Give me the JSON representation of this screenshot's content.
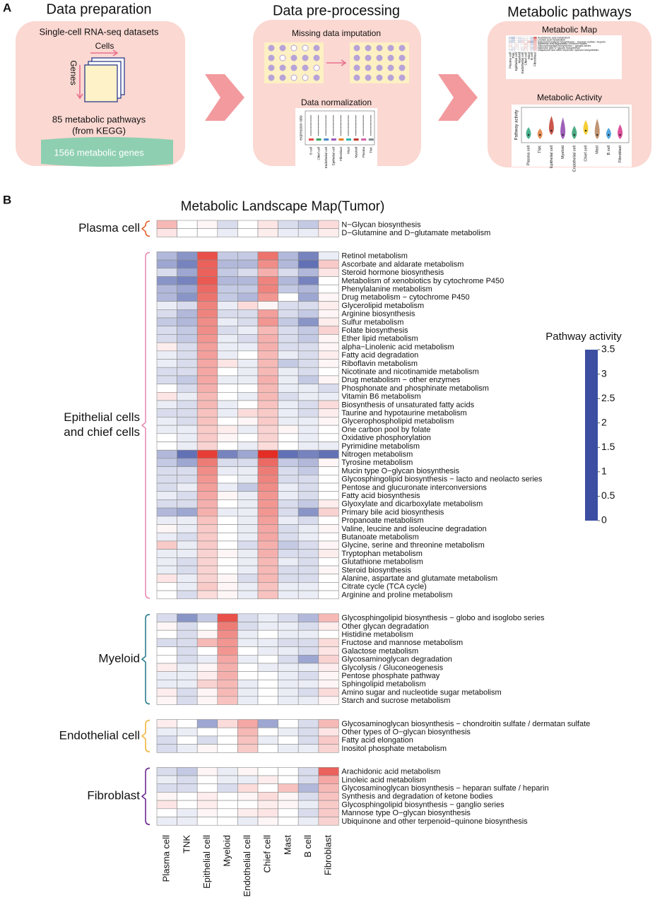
{
  "panel_a": {
    "label": "A",
    "steps": [
      {
        "title": "Data preparation",
        "items": [
          "Single-cell RNA-seq datasets",
          "Cells",
          "Genes",
          "85 metabolic pathways",
          "(from KEGG)",
          "1566 metabolic genes"
        ]
      },
      {
        "title": "Data pre-processing",
        "items": [
          "Missing data imputation",
          "Data normalization"
        ],
        "plot_axis": "expression ratio",
        "plot_labels": [
          "B cell",
          "Chief cell",
          "Endothelial cell",
          "Epithelial cell",
          "Fibroblast",
          "Mast",
          "Myeloid",
          "Plasma",
          "TNK"
        ]
      },
      {
        "title": "Metabolic pathways",
        "items": [
          "Metabolic Map",
          "Metabolic Activity"
        ],
        "plot_axis": "Pathway activity"
      }
    ]
  },
  "panel_b_label": "B",
  "chart_data": {
    "type": "heatmap",
    "title": "Metabolic Landscape Map(Tumor)",
    "categories": [
      "Plasma cell",
      "TNK",
      "Epithelial cell",
      "Myeloid",
      "Endothelial cell",
      "Chief  cell",
      "Mast",
      "B cell",
      "Fibroblast"
    ],
    "colorbar_title": "Pathway activity",
    "zlim": [
      0,
      3.5
    ],
    "zticks": [
      0,
      0.5,
      1,
      1.5,
      2,
      2.5,
      3,
      3.5
    ],
    "colorscale": [
      {
        "value": 0,
        "color": "#3b4ea2"
      },
      {
        "value": 1,
        "color": "#ffffff"
      },
      {
        "value": 3.5,
        "color": "#e3241b"
      }
    ],
    "groups": [
      {
        "label_lines": [
          "Plasma cell"
        ],
        "color": "#e2622f",
        "rows": [
          "N−Glycan biosynthesis",
          "D−Glutamine and D−glutamate metabolism"
        ],
        "values": [
          [
            1.8,
            1.0,
            1.1,
            0.8,
            1.0,
            1.3,
            0.8,
            0.7,
            1.4
          ],
          [
            1.3,
            1.0,
            1.0,
            0.9,
            1.0,
            1.2,
            0.9,
            0.9,
            1.2
          ]
        ]
      },
      {
        "label_lines": [
          "Epithelial cells",
          "and chief cells"
        ],
        "color": "#e98db3",
        "rows": [
          "Retinol metabolism",
          "Ascorbate and aldarate metabolism",
          "Steroid hormone biosynthesis",
          "Metabolism of xenobiotics by cytochrome P450",
          "Phenylalanine metabolism",
          "Drug metabolism − cytochrome P450",
          "Glycerolipid metabolism",
          "Arginine biosynthesis",
          "Sulfur metabolism",
          "Folate biosynthesis",
          "Ether lipid metabolism",
          "alpha−Linolenic acid metabolism",
          "Fatty acid degradation",
          "Riboflavin metabolism",
          "Nicotinate and nicotinamide metabolism",
          "Drug metabolism − other enzymes",
          "Phosphonate and phosphinate metabolism",
          "Vitamin B6 metabolism",
          "Biosynthesis of unsaturated fatty acids",
          "Taurine and hypotaurine metabolism",
          "Glycerophospholipid metabolism",
          "One carbon pool by folate",
          "Oxidative phosphorylation",
          "Pyrimidine metabolism",
          "Nitrogen metabolism",
          "Tyrosine metabolism",
          "Mucin type O−glycan biosynthesis",
          "Glycosphingolipid biosynthesis − lacto and neolacto series",
          "Pentose and glucuronate interconversions",
          "Fatty acid biosynthesis",
          "Glyoxylate and dicarboxylate metabolism",
          "Primary bile acid biosynthesis",
          "Propanoate metabolism",
          "Valine, leucine and isoleucine degradation",
          "Butanoate metabolism",
          "Glycine, serine and threonine metabolism",
          "Tryptophan metabolism",
          "Glutathione metabolism",
          "Steroid biosynthesis",
          "Alanine, aspartate and glutamate metabolism",
          "Citrate cycle (TCA cycle)",
          "Arginine and proline metabolism"
        ],
        "values": [
          [
            0.6,
            0.4,
            3.0,
            0.7,
            0.7,
            2.6,
            0.6,
            0.3,
            0.9
          ],
          [
            0.5,
            0.3,
            2.8,
            0.6,
            0.6,
            2.3,
            0.6,
            0.2,
            1.6
          ],
          [
            0.8,
            0.5,
            2.8,
            0.7,
            0.8,
            1.9,
            0.8,
            0.6,
            1.3
          ],
          [
            0.4,
            0.3,
            2.9,
            0.6,
            0.6,
            2.4,
            0.6,
            0.3,
            1.0
          ],
          [
            0.6,
            0.5,
            2.7,
            0.7,
            0.7,
            2.4,
            0.7,
            0.6,
            1.0
          ],
          [
            0.6,
            0.4,
            2.6,
            0.7,
            0.6,
            2.2,
            1.0,
            0.5,
            1.1
          ],
          [
            0.9,
            0.8,
            2.4,
            0.9,
            1.4,
            1.1,
            0.8,
            0.8,
            1.2
          ],
          [
            0.8,
            0.6,
            2.4,
            0.8,
            0.8,
            2.1,
            0.8,
            0.7,
            1.1
          ],
          [
            0.7,
            0.6,
            2.3,
            0.9,
            0.8,
            2.2,
            0.7,
            0.4,
            1.2
          ],
          [
            0.8,
            0.7,
            2.3,
            0.8,
            0.9,
            1.8,
            0.8,
            0.7,
            1.5
          ],
          [
            0.8,
            0.7,
            2.2,
            0.9,
            0.8,
            1.9,
            0.8,
            0.7,
            1.1
          ],
          [
            1.2,
            0.8,
            2.1,
            0.9,
            0.9,
            1.9,
            0.8,
            0.8,
            1.1
          ],
          [
            0.9,
            0.8,
            2.1,
            0.9,
            1.0,
            1.8,
            0.9,
            0.8,
            1.2
          ],
          [
            0.9,
            0.8,
            2.0,
            1.3,
            0.9,
            1.8,
            0.7,
            0.8,
            1.1
          ],
          [
            0.8,
            0.8,
            2.0,
            1.0,
            0.9,
            1.8,
            0.9,
            0.8,
            1.0
          ],
          [
            0.8,
            0.7,
            2.0,
            0.9,
            0.9,
            1.9,
            0.9,
            0.7,
            1.1
          ],
          [
            1.0,
            0.8,
            1.9,
            1.0,
            1.0,
            1.8,
            0.9,
            0.9,
            0.8
          ],
          [
            1.3,
            0.9,
            1.8,
            1.0,
            0.9,
            1.8,
            0.8,
            0.9,
            0.9
          ],
          [
            0.9,
            0.8,
            1.8,
            0.9,
            1.0,
            1.7,
            0.9,
            0.8,
            1.4
          ],
          [
            0.8,
            0.8,
            1.7,
            0.9,
            1.4,
            1.6,
            0.9,
            0.8,
            1.2
          ],
          [
            0.9,
            0.8,
            1.7,
            1.0,
            1.1,
            1.6,
            0.9,
            0.9,
            1.1
          ],
          [
            0.9,
            0.9,
            1.6,
            1.2,
            0.9,
            1.5,
            1.1,
            0.9,
            1.0
          ],
          [
            1.0,
            0.9,
            1.6,
            1.1,
            1.0,
            1.5,
            1.0,
            0.9,
            1.0
          ],
          [
            1.0,
            0.9,
            1.5,
            1.0,
            0.9,
            1.4,
            1.0,
            0.9,
            0.9
          ],
          [
            0.6,
            0.2,
            3.2,
            0.3,
            0.5,
            3.4,
            0.2,
            0.3,
            0.2
          ],
          [
            0.7,
            0.5,
            2.5,
            0.8,
            0.8,
            2.7,
            0.7,
            0.6,
            1.1
          ],
          [
            0.8,
            0.8,
            2.3,
            0.9,
            0.9,
            2.5,
            0.8,
            0.7,
            1.0
          ],
          [
            0.8,
            0.8,
            2.2,
            1.0,
            0.9,
            2.4,
            0.8,
            0.8,
            1.0
          ],
          [
            0.8,
            0.9,
            2.1,
            0.9,
            0.7,
            2.3,
            0.9,
            0.8,
            1.0
          ],
          [
            0.9,
            0.8,
            2.0,
            1.1,
            0.9,
            2.2,
            0.9,
            0.8,
            1.0
          ],
          [
            0.8,
            0.8,
            1.9,
            1.0,
            0.9,
            2.2,
            0.8,
            0.7,
            1.2
          ],
          [
            0.6,
            0.5,
            1.9,
            0.9,
            0.9,
            2.2,
            0.8,
            0.4,
            1.5
          ],
          [
            0.9,
            0.9,
            1.7,
            1.0,
            0.9,
            2.1,
            0.9,
            0.8,
            1.0
          ],
          [
            1.1,
            0.9,
            1.6,
            1.0,
            0.9,
            2.0,
            0.8,
            0.9,
            1.1
          ],
          [
            0.9,
            0.8,
            1.6,
            1.0,
            0.9,
            2.0,
            0.8,
            0.9,
            1.0
          ],
          [
            1.6,
            0.9,
            1.6,
            1.0,
            0.8,
            1.9,
            0.7,
            0.8,
            1.1
          ],
          [
            0.9,
            0.9,
            1.5,
            1.1,
            0.9,
            1.9,
            0.8,
            0.8,
            1.2
          ],
          [
            0.9,
            0.8,
            1.5,
            1.0,
            0.9,
            1.8,
            0.9,
            0.8,
            1.0
          ],
          [
            0.9,
            0.8,
            1.5,
            1.0,
            0.9,
            1.8,
            0.8,
            0.8,
            1.1
          ],
          [
            1.3,
            0.9,
            1.5,
            1.1,
            0.8,
            1.8,
            0.8,
            0.8,
            1.0
          ],
          [
            1.0,
            0.9,
            1.6,
            1.1,
            0.9,
            1.7,
            0.9,
            0.9,
            1.0
          ],
          [
            1.0,
            0.8,
            1.4,
            1.1,
            0.9,
            1.7,
            0.9,
            0.9,
            1.0
          ]
        ]
      },
      {
        "label_lines": [
          "Myeloid"
        ],
        "color": "#2b7f8c",
        "rows": [
          "Glycosphingolipid biosynthesis − globo and isoglobo series",
          "Other glycan degradation",
          "Histidine metabolism",
          "Fructose and mannose metabolism",
          "Galactose metabolism",
          "Glycosaminoglycan degradation",
          "Glycolysis / Gluconeogenesis",
          "Pentose phosphate pathway",
          "Sphingolipid metabolism",
          "Amino sugar and nucleotide sugar metabolism",
          "Starch and sucrose metabolism"
        ],
        "values": [
          [
            0.8,
            0.4,
            0.7,
            3.0,
            0.8,
            0.9,
            0.8,
            0.6,
            1.8
          ],
          [
            1.1,
            0.8,
            1.0,
            2.5,
            0.8,
            0.9,
            0.9,
            0.8,
            1.2
          ],
          [
            1.0,
            0.8,
            1.1,
            2.3,
            0.9,
            1.0,
            0.9,
            0.9,
            1.0
          ],
          [
            0.8,
            0.8,
            1.8,
            2.2,
            0.9,
            0.9,
            0.8,
            0.8,
            1.4
          ],
          [
            1.0,
            0.8,
            1.0,
            2.2,
            1.0,
            0.9,
            0.9,
            0.8,
            1.3
          ],
          [
            1.0,
            0.8,
            0.9,
            2.0,
            0.9,
            1.0,
            0.8,
            0.5,
            1.5
          ],
          [
            1.2,
            0.9,
            1.1,
            1.9,
            1.0,
            0.9,
            0.9,
            0.9,
            1.2
          ],
          [
            0.9,
            0.9,
            1.2,
            1.9,
            1.0,
            1.0,
            0.9,
            0.8,
            1.1
          ],
          [
            0.9,
            0.9,
            1.5,
            1.8,
            0.9,
            1.0,
            0.9,
            0.9,
            1.1
          ],
          [
            1.2,
            0.8,
            1.1,
            1.8,
            0.9,
            1.0,
            0.9,
            0.8,
            1.4
          ],
          [
            1.1,
            0.8,
            1.1,
            1.7,
            0.9,
            1.0,
            0.9,
            0.9,
            1.1
          ]
        ]
      },
      {
        "label_lines": [
          "Endothelial cell"
        ],
        "color": "#f2b540",
        "rows": [
          "Glycosaminoglycan biosynthesis − chondroitin sulfate / dermatan sulfate",
          "Other types of O−glycan biosynthesis",
          "Fatty acid elongation",
          "Inositol phosphate metabolism"
        ],
        "values": [
          [
            1.2,
            1.0,
            0.5,
            1.4,
            2.0,
            0.5,
            1.0,
            0.8,
            1.8
          ],
          [
            0.9,
            0.9,
            1.0,
            1.0,
            1.8,
            1.0,
            0.9,
            0.8,
            1.3
          ],
          [
            0.8,
            1.0,
            0.8,
            1.0,
            1.7,
            0.9,
            1.0,
            0.8,
            1.6
          ],
          [
            0.8,
            0.9,
            1.1,
            1.0,
            1.6,
            1.0,
            0.9,
            0.9,
            1.5
          ]
        ]
      },
      {
        "label_lines": [
          "Fibroblast"
        ],
        "color": "#6b2b92",
        "rows": [
          "Arachidonic acid metabolism",
          "Linoleic acid metabolism",
          "Glycosaminoglycan biosynthesis − heparan sulfate / heparin",
          "Synthesis and degradation of ketone bodies",
          "Glycosphingolipid biosynthesis − ganglio series",
          "Mannose type O−glycan biosynthesis",
          "Ubiquinone and other terpenoid−quinone biosynthesis"
        ],
        "values": [
          [
            0.8,
            0.7,
            1.1,
            0.9,
            1.1,
            1.0,
            1.0,
            0.8,
            2.8
          ],
          [
            0.9,
            0.8,
            1.0,
            0.9,
            0.9,
            1.2,
            1.0,
            0.8,
            2.0
          ],
          [
            0.8,
            0.8,
            1.0,
            0.8,
            1.4,
            1.0,
            1.7,
            0.6,
            1.8
          ],
          [
            1.1,
            1.0,
            1.2,
            1.0,
            1.1,
            1.4,
            1.1,
            0.8,
            1.7
          ],
          [
            1.3,
            1.0,
            1.2,
            1.0,
            1.0,
            1.2,
            1.1,
            0.9,
            1.6
          ],
          [
            1.0,
            0.9,
            1.1,
            1.0,
            1.2,
            1.3,
            1.0,
            0.8,
            1.6
          ],
          [
            0.9,
            0.9,
            1.0,
            1.0,
            0.9,
            1.1,
            1.0,
            0.9,
            1.5
          ]
        ]
      }
    ]
  }
}
